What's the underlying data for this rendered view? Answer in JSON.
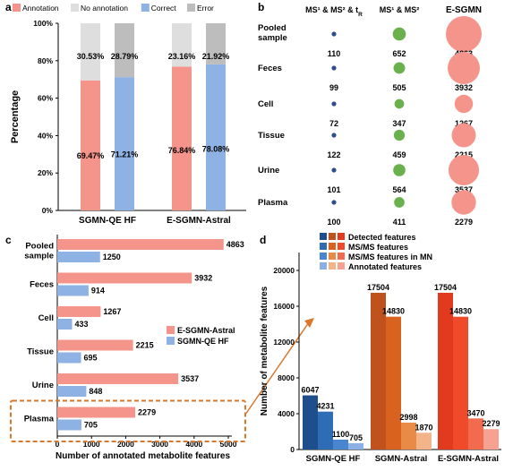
{
  "chart_data": [
    {
      "panel": "a",
      "type": "bar",
      "stacked": true,
      "ylabel": "Percentage",
      "yticks": [
        "0%",
        "20%",
        "40%",
        "60%",
        "80%",
        "100%"
      ],
      "ylim": [
        0,
        100
      ],
      "legend": [
        {
          "name": "Annotation",
          "color": "#f4948a"
        },
        {
          "name": "No annotation",
          "color": "#dedede"
        },
        {
          "name": "Correct",
          "color": "#8fb2e4"
        },
        {
          "name": "Error",
          "color": "#bdbdbd"
        }
      ],
      "groups": [
        {
          "name": "SGMN-QE HF",
          "bars": [
            {
              "bottom": 69.47,
              "top": 30.53,
              "bottom_label": "69.47%",
              "top_label": "30.53%",
              "bottom_color": "#f4948a",
              "top_color": "#dedede"
            },
            {
              "bottom": 71.21,
              "top": 28.79,
              "bottom_label": "71.21%",
              "top_label": "28.79%",
              "bottom_color": "#8fb2e4",
              "top_color": "#bdbdbd"
            }
          ]
        },
        {
          "name": "E-SGMN-Astral",
          "bars": [
            {
              "bottom": 76.84,
              "top": 23.16,
              "bottom_label": "76.84%",
              "top_label": "23.16%",
              "bottom_color": "#f4948a",
              "top_color": "#dedede"
            },
            {
              "bottom": 78.08,
              "top": 21.92,
              "bottom_label": "78.08%",
              "top_label": "21.92%",
              "bottom_color": "#8fb2e4",
              "top_color": "#bdbdbd"
            }
          ]
        }
      ]
    },
    {
      "panel": "b",
      "type": "scatter",
      "columns": [
        "MS¹ & MS² & t",
        "MS¹ & MS²",
        "E-SGMN"
      ],
      "column_subscript": "R",
      "column_colors": [
        "#2e4f8c",
        "#6ab04c",
        "#f4948a"
      ],
      "rows": [
        {
          "name": "Pooled sample",
          "values": [
            110,
            652,
            4863
          ]
        },
        {
          "name": "Feces",
          "values": [
            99,
            505,
            3932
          ]
        },
        {
          "name": "Cell",
          "values": [
            72,
            347,
            1267
          ]
        },
        {
          "name": "Tissue",
          "values": [
            122,
            459,
            2215
          ]
        },
        {
          "name": "Urine",
          "values": [
            101,
            564,
            3537
          ]
        },
        {
          "name": "Plasma",
          "values": [
            100,
            411,
            2279
          ]
        }
      ]
    },
    {
      "panel": "c",
      "type": "bar",
      "orientation": "horizontal",
      "xlabel": "Number of annotated metabolite features",
      "xlim": [
        0,
        5000
      ],
      "xticks": [
        0,
        1000,
        2000,
        3000,
        4000,
        5000
      ],
      "categories": [
        "Pooled sample",
        "Feces",
        "Cell",
        "Tissue",
        "Urine",
        "Plasma"
      ],
      "series": [
        {
          "name": "E-SGMN-Astral",
          "color": "#f4948a",
          "values": [
            4863,
            3932,
            1267,
            2215,
            3537,
            2279
          ]
        },
        {
          "name": "SGMN-QE HF",
          "color": "#8fb2e4",
          "values": [
            1250,
            914,
            433,
            695,
            848,
            705
          ]
        }
      ],
      "legend_position": "right"
    },
    {
      "panel": "d",
      "type": "bar",
      "ylabel": "Number of metabolite features",
      "ylim": [
        0,
        22000
      ],
      "yticks": [
        0,
        4000,
        8000,
        12000,
        16000,
        20000
      ],
      "categories": [
        "SGMN-QE HF",
        "SGMN-Astral",
        "E-SGMN-Astral"
      ],
      "legend": [
        "Detected features",
        "MS/MS features",
        "MS/MS features in MN",
        "Annotated features"
      ],
      "legend_swatches": [
        [
          "#1f4e8c",
          "#c0521d",
          "#e13a1e"
        ],
        [
          "#2e6cb5",
          "#d9621f",
          "#ef4b2a"
        ],
        [
          "#4a86d0",
          "#e98a46",
          "#f26b4e"
        ],
        [
          "#8ab0e6",
          "#f2b488",
          "#f7a291"
        ]
      ],
      "series": [
        {
          "name": "Detected features",
          "values": [
            6047,
            17504,
            17504
          ],
          "colors": [
            "#1f4e8c",
            "#c0521d",
            "#e13a1e"
          ]
        },
        {
          "name": "MS/MS features",
          "values": [
            4231,
            14830,
            14830
          ],
          "colors": [
            "#2e6cb5",
            "#d9621f",
            "#ef4b2a"
          ]
        },
        {
          "name": "MS/MS features in MN",
          "values": [
            1100,
            2998,
            3470
          ],
          "colors": [
            "#4a86d0",
            "#e98a46",
            "#f26b4e"
          ]
        },
        {
          "name": "Annotated features",
          "values": [
            705,
            1870,
            2279
          ],
          "colors": [
            "#8ab0e6",
            "#f2b488",
            "#f7a291"
          ]
        }
      ]
    }
  ]
}
